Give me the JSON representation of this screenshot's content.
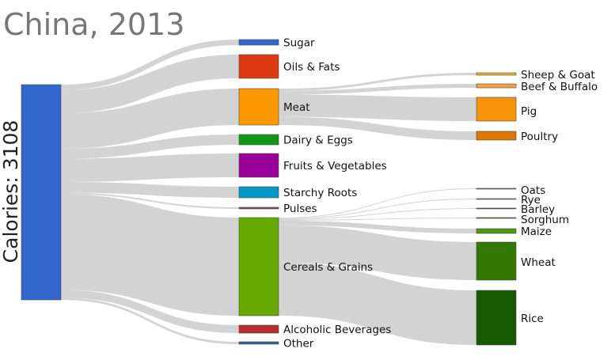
{
  "title": "China, 2013",
  "total_label": "Calories: 3108",
  "colors": {
    "link": "#d3d3d3",
    "total_node": "#3366cc",
    "title": "#777777"
  },
  "chart_data": {
    "type": "sankey",
    "title": "China, 2013",
    "root": {
      "name": "Calories: 3108",
      "value": 3108
    },
    "categories": [
      {
        "name": "Sugar",
        "color": "#3366cc"
      },
      {
        "name": "Oils & Fats",
        "color": "#dc3912"
      },
      {
        "name": "Meat",
        "color": "#ff9900"
      },
      {
        "name": "Dairy & Eggs",
        "color": "#109618"
      },
      {
        "name": "Fruits & Vegetables",
        "color": "#990099"
      },
      {
        "name": "Starchy Roots",
        "color": "#0099c6"
      },
      {
        "name": "Pulses",
        "color": "#8b3a62"
      },
      {
        "name": "Cereals & Grains",
        "color": "#66aa00"
      },
      {
        "name": "Alcoholic Beverages",
        "color": "#b82e2e"
      },
      {
        "name": "Other",
        "color": "#316395"
      }
    ],
    "subcategories": [
      {
        "parent": "Meat",
        "name": "Sheep & Goat",
        "color": "#e8b32a"
      },
      {
        "parent": "Meat",
        "name": "Beef & Buffalo",
        "color": "#f2a13c"
      },
      {
        "parent": "Meat",
        "name": "Pig",
        "color": "#f59207"
      },
      {
        "parent": "Meat",
        "name": "Poultry",
        "color": "#dd7702"
      },
      {
        "parent": "Cereals & Grains",
        "name": "Oats",
        "color": "#777777"
      },
      {
        "parent": "Cereals & Grains",
        "name": "Rye",
        "color": "#777777"
      },
      {
        "parent": "Cereals & Grains",
        "name": "Barley",
        "color": "#555555"
      },
      {
        "parent": "Cereals & Grains",
        "name": "Sorghum",
        "color": "#4a5a1a"
      },
      {
        "parent": "Cereals & Grains",
        "name": "Maize",
        "color": "#4d9a12"
      },
      {
        "parent": "Cereals & Grains",
        "name": "Wheat",
        "color": "#337700"
      },
      {
        "parent": "Cereals & Grains",
        "name": "Rice",
        "color": "#165a00"
      }
    ]
  }
}
